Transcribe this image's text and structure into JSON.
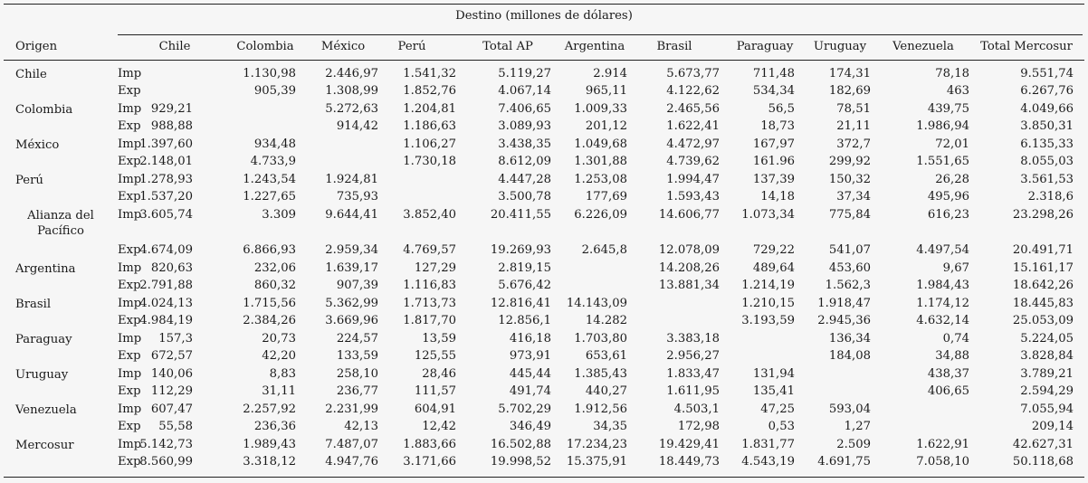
{
  "table": {
    "group_header": "Destino (millones de dólares)",
    "origin_header": "Origen",
    "columns": [
      "Chile",
      "Colombia",
      "México",
      "Perú",
      "Total AP",
      "Argentina",
      "Brasil",
      "Paraguay",
      "Uruguay",
      "Venezuela",
      "Total Mercosur"
    ],
    "rows": [
      {
        "origin": "Chile",
        "imp": [
          "",
          "1.130,98",
          "2.446,97",
          "1.541,32",
          "5.119,27",
          "2.914",
          "5.673,77",
          "711,48",
          "174,31",
          "78,18",
          "9.551,74"
        ],
        "exp": [
          "",
          "905,39",
          "1.308,99",
          "1.852,76",
          "4.067,14",
          "965,11",
          "4.122,62",
          "534,34",
          "182,69",
          "463",
          "6.267,76"
        ]
      },
      {
        "origin": "Colombia",
        "imp": [
          "929,21",
          "",
          "5.272,63",
          "1.204,81",
          "7.406,65",
          "1.009,33",
          "2.465,56",
          "56,5",
          "78,51",
          "439,75",
          "4.049,66"
        ],
        "exp": [
          "988,88",
          "",
          "914,42",
          "1.186,63",
          "3.089,93",
          "201,12",
          "1.622,41",
          "18,73",
          "21,11",
          "1.986,94",
          "3.850,31"
        ]
      },
      {
        "origin": "México",
        "imp": [
          "1.397,60",
          "934,48",
          "",
          "1.106,27",
          "3.438,35",
          "1.049,68",
          "4.472,97",
          "167,97",
          "372,7",
          "72,01",
          "6.135,33"
        ],
        "exp": [
          "2.148,01",
          "4.733,9",
          "",
          "1.730,18",
          "8.612,09",
          "1.301,88",
          "4.739,62",
          "161.96",
          "299,92",
          "1.551,65",
          "8.055,03"
        ]
      },
      {
        "origin": "Perú",
        "imp": [
          "1.278,93",
          "1.243,54",
          "1.924,81",
          "",
          "4.447,28",
          "1.253,08",
          "1.994,47",
          "137,39",
          "150,32",
          "26,28",
          "3.561,53"
        ],
        "exp": [
          "1.537,20",
          "1.227,65",
          "735,93",
          "",
          "3.500,78",
          "177,69",
          "1.593,43",
          "14,18",
          "37,34",
          "495,96",
          "2.318,6"
        ]
      },
      {
        "origin": "Alianza del Pacífico",
        "imp": [
          "3.605,74",
          "3.309",
          "9.644,41",
          "3.852,40",
          "20.411,55",
          "6.226,09",
          "14.606,77",
          "1.073,34",
          "775,84",
          "616,23",
          "23.298,26"
        ],
        "exp": [
          "4.674,09",
          "6.866,93",
          "2.959,34",
          "4.769,57",
          "19.269,93",
          "2.645,8",
          "12.078,09",
          "729,22",
          "541,07",
          "4.497,54",
          "20.491,71"
        ]
      },
      {
        "origin": "Argentina",
        "imp": [
          "820,63",
          "232,06",
          "1.639,17",
          "127,29",
          "2.819,15",
          "",
          "14.208,26",
          "489,64",
          "453,60",
          "9,67",
          "15.161,17"
        ],
        "exp": [
          "2.791,88",
          "860,32",
          "907,39",
          "1.116,83",
          "5.676,42",
          "",
          "13.881,34",
          "1.214,19",
          "1.562,3",
          "1.984,43",
          "18.642,26"
        ]
      },
      {
        "origin": "Brasil",
        "imp": [
          "4.024,13",
          "1.715,56",
          "5.362,99",
          "1.713,73",
          "12.816,41",
          "14.143,09",
          "",
          "1.210,15",
          "1.918,47",
          "1.174,12",
          "18.445,83"
        ],
        "exp": [
          "4.984,19",
          "2.384,26",
          "3.669,96",
          "1.817,70",
          "12.856,1",
          "14.282",
          "",
          "3.193,59",
          "2.945,36",
          "4.632,14",
          "25.053,09"
        ]
      },
      {
        "origin": "Paraguay",
        "imp": [
          "157,3",
          "20,73",
          "224,57",
          "13,59",
          "416,18",
          "1.703,80",
          "3.383,18",
          "",
          "136,34",
          "0,74",
          "5.224,05"
        ],
        "exp": [
          "672,57",
          "42,20",
          "133,59",
          "125,55",
          "973,91",
          "653,61",
          "2.956,27",
          "",
          "184,08",
          "34,88",
          "3.828,84"
        ]
      },
      {
        "origin": "Uruguay",
        "imp": [
          "140,06",
          "8,83",
          "258,10",
          "28,46",
          "445,44",
          "1.385,43",
          "1.833,47",
          "131,94",
          "",
          "438,37",
          "3.789,21"
        ],
        "exp": [
          "112,29",
          "31,11",
          "236,77",
          "111,57",
          "491,74",
          "440,27",
          "1.611,95",
          "135,41",
          "",
          "406,65",
          "2.594,29"
        ]
      },
      {
        "origin": "Venezuela",
        "imp": [
          "607,47",
          "2.257,92",
          "2.231,99",
          "604,91",
          "5.702,29",
          "1.912,56",
          "4.503,1",
          "47,25",
          "593,04",
          "",
          "7.055,94"
        ],
        "exp": [
          "55,58",
          "236,36",
          "42,13",
          "12,42",
          "346,49",
          "34,35",
          "172,98",
          "0,53",
          "1,27",
          "",
          "209,14"
        ]
      },
      {
        "origin": "Mercosur",
        "imp": [
          "5.142,73",
          "1.989,43",
          "7.487,07",
          "1.883,66",
          "16.502,88",
          "17.234,23",
          "19.429,41",
          "1.831,77",
          "2.509",
          "1.622,91",
          "42.627,31"
        ],
        "exp": [
          "8.560,99",
          "3.318,12",
          "4.947,76",
          "3.171,66",
          "19.998,52",
          "15.375,91",
          "18.449,73",
          "4.543,19",
          "4.691,75",
          "7.058,10",
          "50.118,68"
        ]
      }
    ],
    "imp_label": "Imp",
    "exp_label": "Exp"
  }
}
